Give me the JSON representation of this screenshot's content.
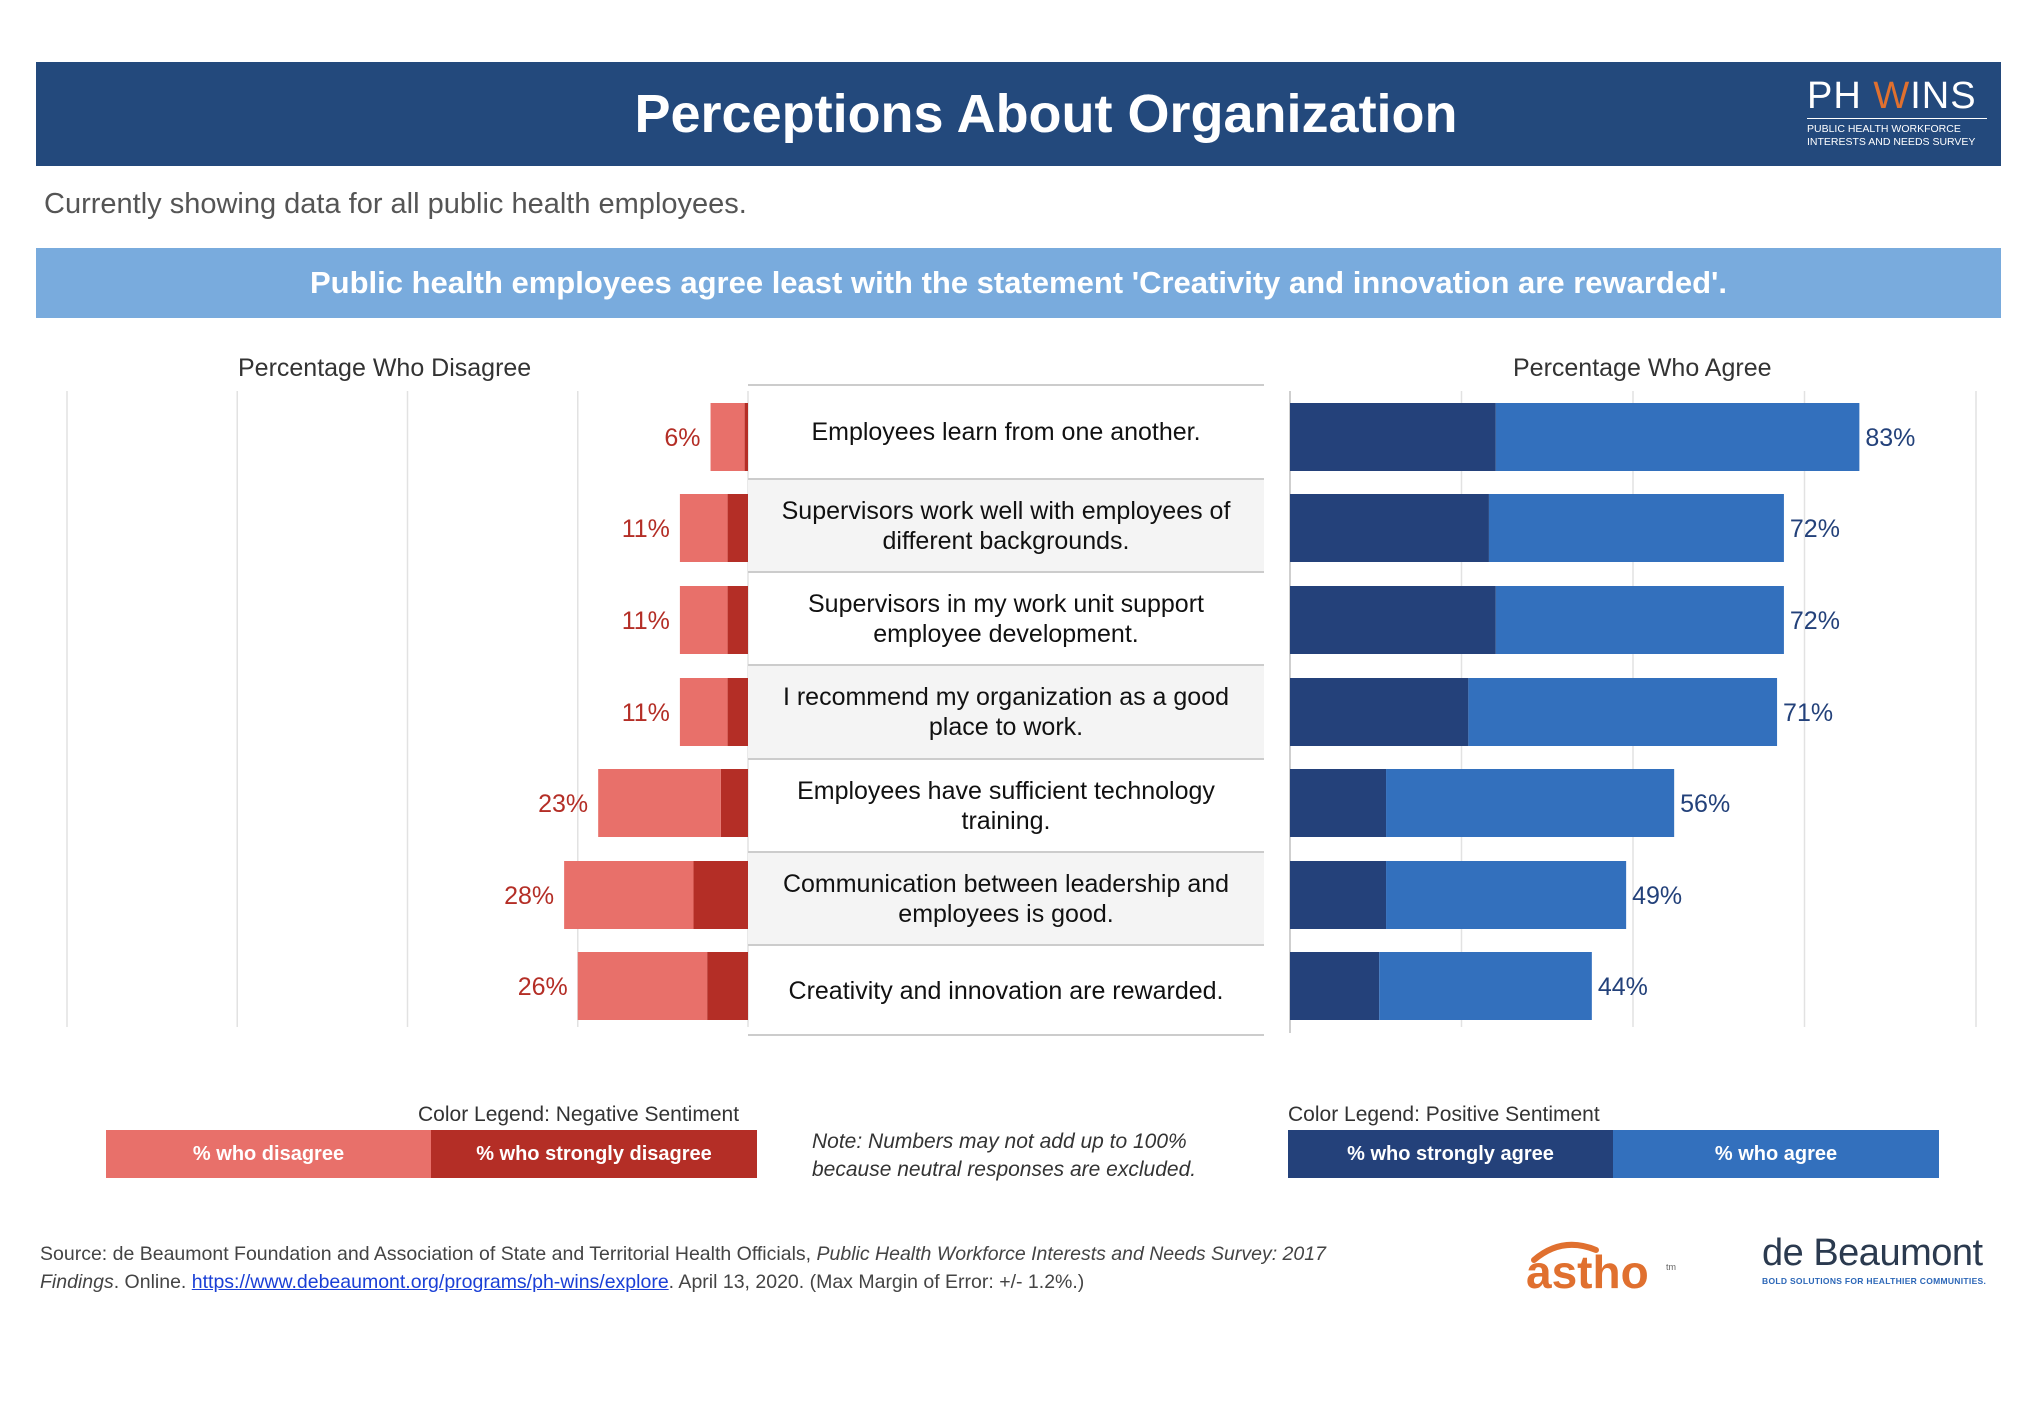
{
  "header": {
    "title": "Perceptions About Organization",
    "logo_main_left": "PH ",
    "logo_main_mark": "W",
    "logo_main_right": "INS",
    "logo_sub_1": "PUBLIC HEALTH WORKFORCE",
    "logo_sub_2": "INTERESTS AND NEEDS SURVEY"
  },
  "subtitle": "Currently showing data for all public health employees.",
  "banner": "Public health employees agree least with the statement 'Creativity and innovation are rewarded'.",
  "panels": {
    "left_title": "Percentage Who Disagree",
    "right_title": "Percentage Who Agree"
  },
  "colors": {
    "disagree": "#e8706a",
    "strongly_disagree": "#b42e26",
    "strongly_agree": "#24417a",
    "agree": "#3370bd",
    "disagree_label": "#b42e26",
    "agree_label": "#23417a",
    "header_bg": "#23497c",
    "banner_bg": "#79abdd"
  },
  "chart_data": {
    "type": "bar",
    "orientation": "horizontal-diverging",
    "categories": [
      "Employees learn from one another.",
      "Supervisors work well with employees of different backgrounds.",
      "Supervisors in my work unit support employee development.",
      "I recommend my organization as a good place to work.",
      "Employees have sufficient technology training.",
      "Communication between leadership and employees is good.",
      "Creativity and innovation are rewarded."
    ],
    "disagree_side": {
      "axis_ticks": [
        "100%",
        "75%",
        "50%",
        "25%",
        "0%"
      ],
      "xlim": [
        0,
        100
      ],
      "totals": [
        6,
        11,
        11,
        11,
        23,
        28,
        26
      ],
      "total_labels": [
        "6%",
        "11%",
        "11%",
        "11%",
        "23%",
        "28%",
        "26%"
      ],
      "series": [
        {
          "name": "% who disagree",
          "values": [
            5,
            7,
            7,
            7,
            18,
            19,
            19
          ]
        },
        {
          "name": "% who strongly disagree",
          "values": [
            0.5,
            3,
            3,
            3,
            4,
            8,
            6
          ]
        }
      ]
    },
    "agree_side": {
      "axis_ticks": [
        "0%",
        "25%",
        "50%",
        "75%",
        "100%"
      ],
      "xlim": [
        0,
        100
      ],
      "totals": [
        83,
        72,
        72,
        71,
        56,
        49,
        44
      ],
      "total_labels": [
        "83%",
        "72%",
        "72%",
        "71%",
        "56%",
        "49%",
        "44%"
      ],
      "series": [
        {
          "name": "% who strongly agree",
          "values": [
            30,
            29,
            30,
            26,
            14,
            14,
            13
          ]
        },
        {
          "name": "% who agree",
          "values": [
            53,
            43,
            42,
            45,
            42,
            35,
            31
          ]
        }
      ]
    }
  },
  "legend": {
    "negative_title": "Color Legend: Negative Sentiment",
    "negative_items": [
      "% who disagree",
      "% who strongly disagree"
    ],
    "positive_title": "Color Legend: Positive Sentiment",
    "positive_items": [
      "% who strongly agree",
      "% who agree"
    ]
  },
  "note": {
    "line1": "Note: Numbers may not add up to 100%",
    "line2": "because neutral responses are excluded."
  },
  "source": {
    "prefix": "Source: de Beaumont Foundation and Association of State and Territorial Health Officials, ",
    "italic": "Public Health Workforce Interests and Needs Survey: 2017 Findings",
    "online": ". Online. ",
    "link": "https://www.debeaumont.org/programs/ph-wins/explore",
    "suffix": ".  April 13, 2020.  (Max Margin of Error:  +/- 1.2%.)"
  },
  "footer_logos": {
    "astho": "astho",
    "astho_tm": "tm",
    "debeaumont": "de Beaumont",
    "debeaumont_tagline": "BOLD SOLUTIONS FOR HEALTHIER COMMUNITIES."
  }
}
